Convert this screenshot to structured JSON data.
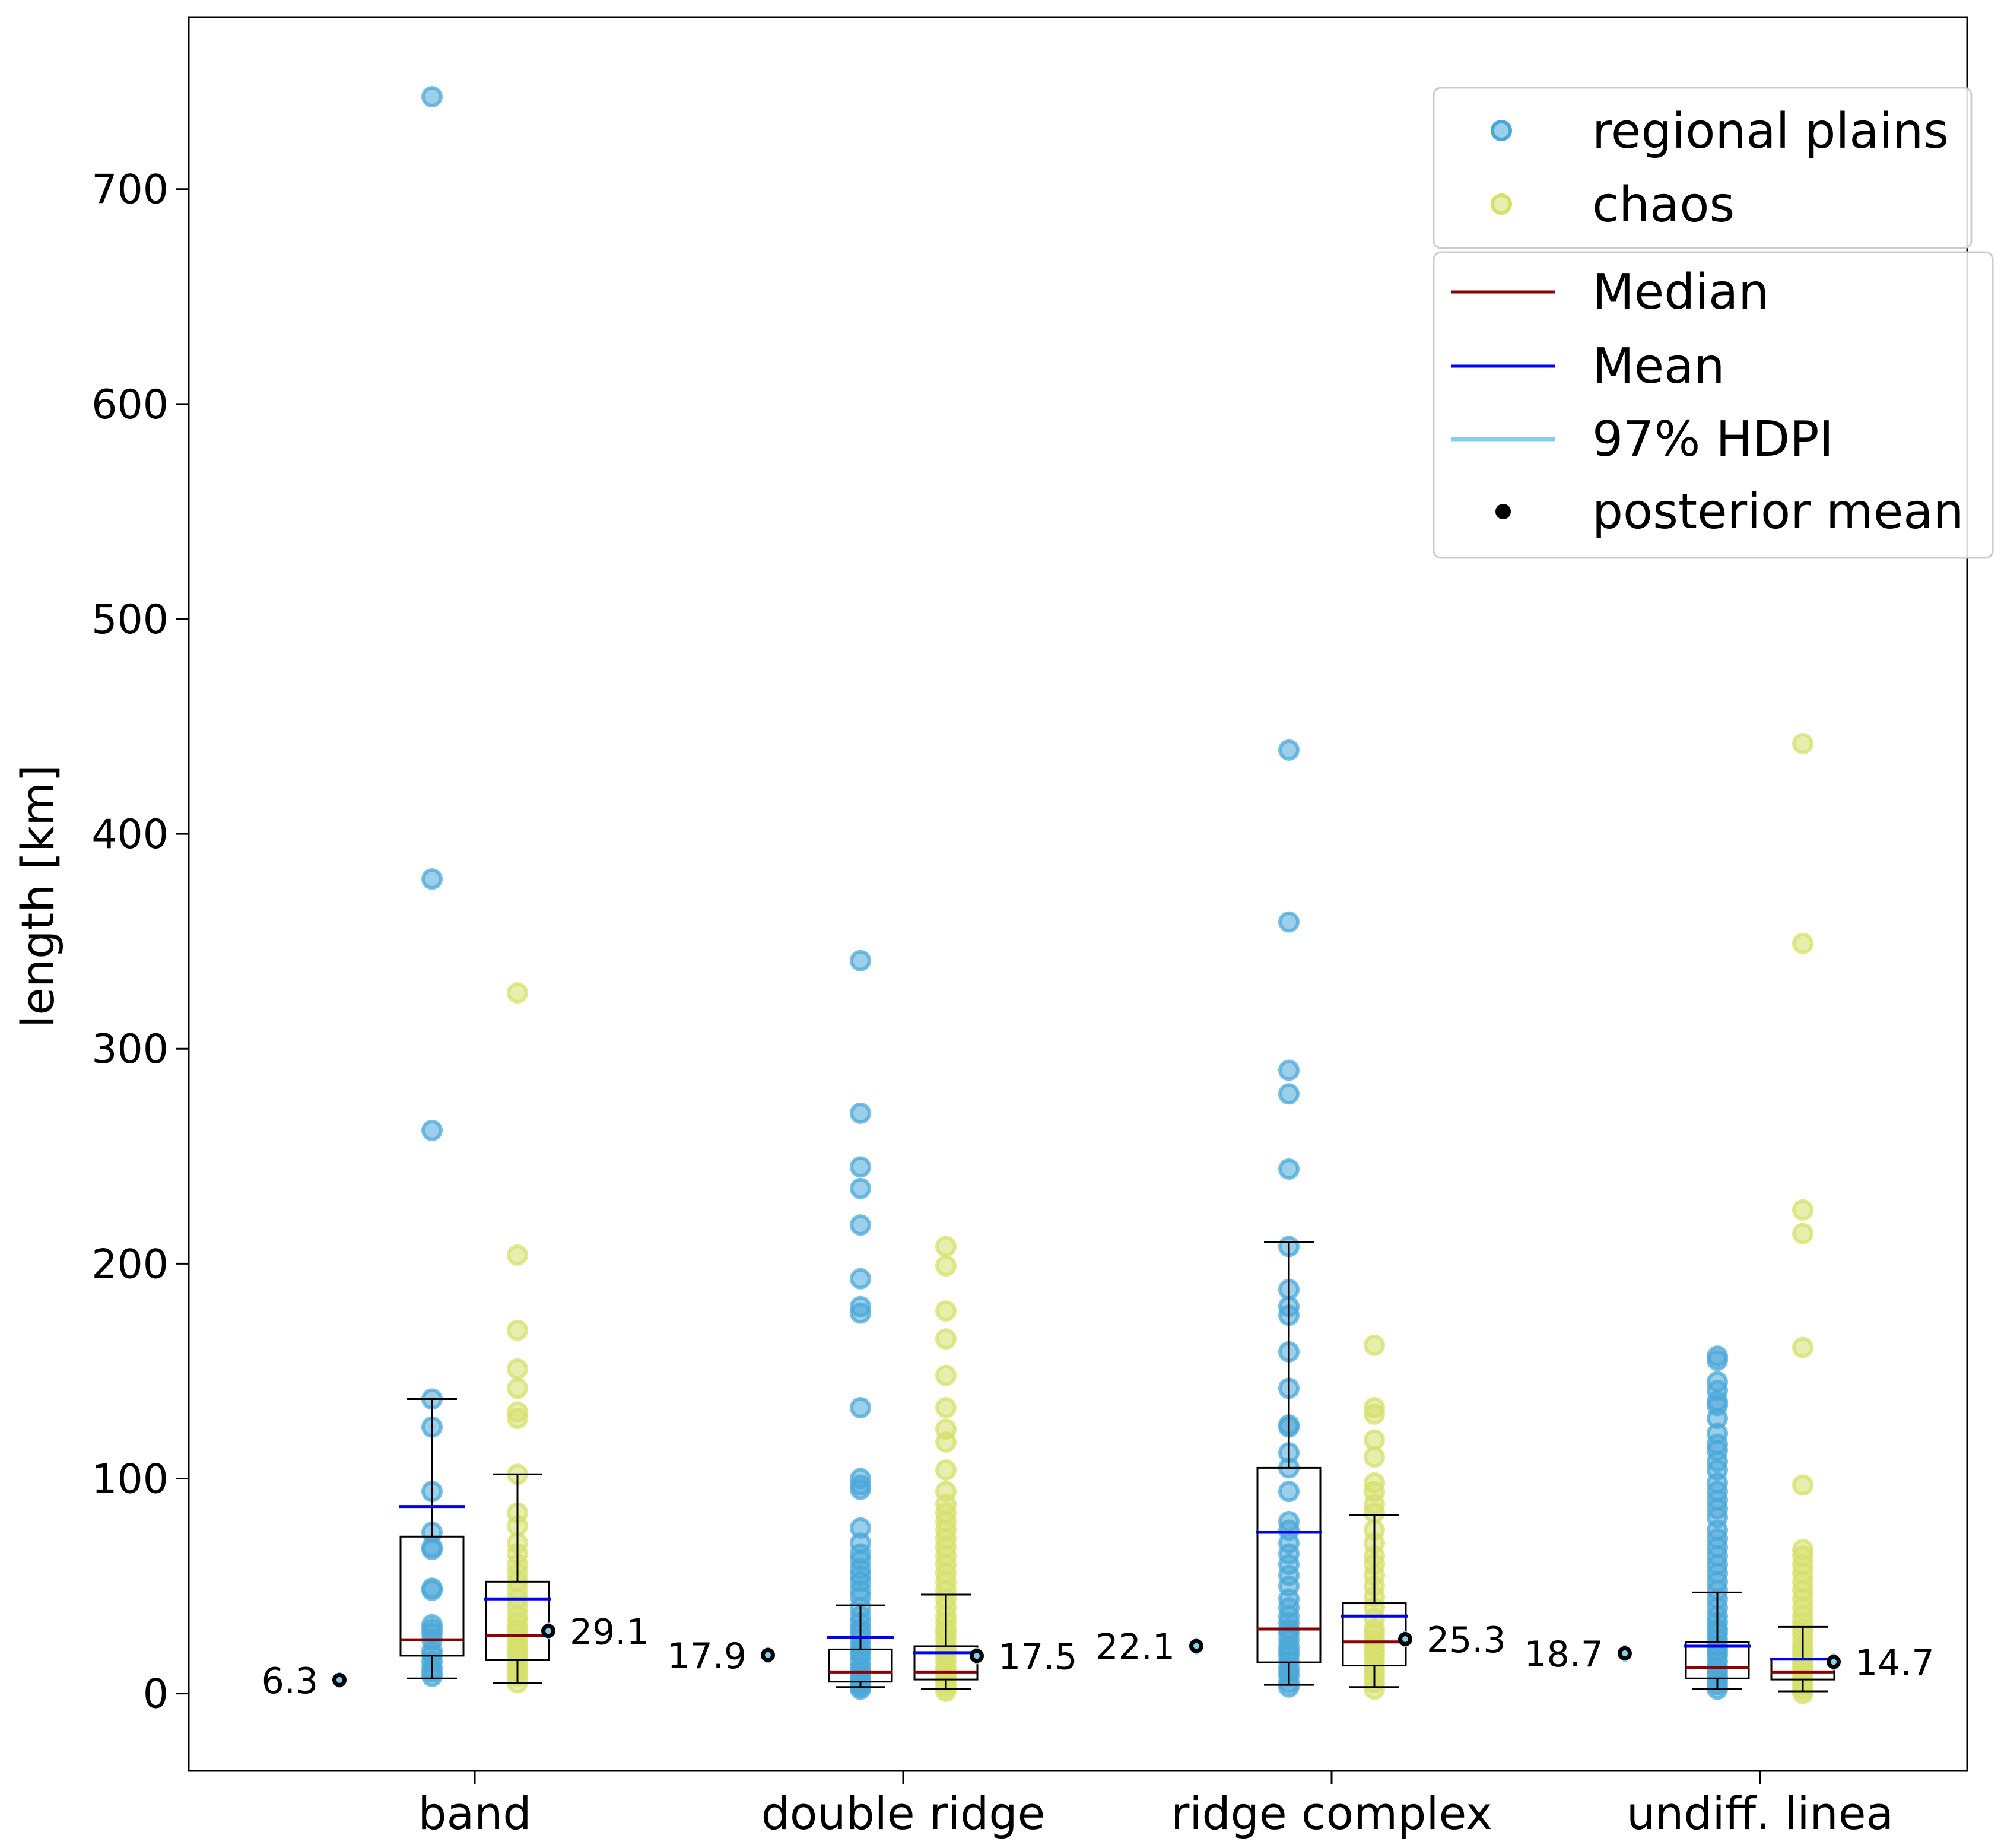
{
  "chart_data": {
    "type": "box",
    "ylabel": "length [km]",
    "ylim": [
      -36,
      780
    ],
    "yticks": [
      0,
      100,
      200,
      300,
      400,
      500,
      600,
      700
    ],
    "categories": [
      "band",
      "double ridge",
      "ridge complex",
      "undiff. linea"
    ],
    "series": [
      {
        "name": "regional plains",
        "color": "#4aa8d8",
        "stats": [
          {
            "whislo": 7,
            "q1": 17.6,
            "median": 25,
            "q3": 73,
            "whishi": 137,
            "mean": 87
          },
          {
            "whislo": 3,
            "q1": 5.5,
            "median": 10,
            "q3": 20.5,
            "whishi": 41,
            "mean": 26
          },
          {
            "whislo": 4,
            "q1": 14.5,
            "median": 30,
            "q3": 105,
            "whishi": 210,
            "mean": 75
          },
          {
            "whislo": 2,
            "q1": 7,
            "median": 12,
            "q3": 24,
            "whishi": 47,
            "mean": 22
          }
        ],
        "points": [
          [
            8,
            10,
            12,
            15,
            18,
            20,
            25,
            28,
            30,
            32,
            48,
            49,
            67,
            68,
            75,
            94,
            124,
            137,
            262,
            379,
            743
          ],
          [
            2,
            3,
            4,
            5,
            6,
            8,
            10,
            12,
            15,
            18,
            20,
            22,
            25,
            28,
            30,
            33,
            36,
            40,
            45,
            48,
            52,
            55,
            58,
            62,
            65,
            70,
            77,
            95,
            97,
            100,
            133,
            177,
            180,
            193,
            218,
            235,
            245,
            270,
            341
          ],
          [
            3,
            5,
            8,
            10,
            12,
            15,
            18,
            20,
            22,
            25,
            28,
            30,
            33,
            36,
            40,
            44,
            50,
            55,
            60,
            65,
            70,
            76,
            80,
            94,
            105,
            112,
            124,
            125,
            142,
            159,
            176,
            180,
            188,
            208,
            244,
            279,
            290,
            359,
            439
          ],
          [
            2,
            4,
            6,
            8,
            10,
            12,
            15,
            18,
            20,
            22,
            25,
            28,
            30,
            33,
            36,
            40,
            44,
            48,
            52,
            56,
            60,
            64,
            68,
            72,
            76,
            82,
            86,
            90,
            94,
            98,
            104,
            108,
            113,
            116,
            121,
            128,
            134,
            136,
            141,
            145,
            155,
            157
          ]
        ]
      },
      {
        "name": "chaos",
        "color": "#d5e06b",
        "stats": [
          {
            "whislo": 5,
            "q1": 15.5,
            "median": 27,
            "q3": 52,
            "whishi": 102,
            "mean": 44
          },
          {
            "whislo": 2,
            "q1": 6.5,
            "median": 10,
            "q3": 22,
            "whishi": 46,
            "mean": 19
          },
          {
            "whislo": 3,
            "q1": 13,
            "median": 24,
            "q3": 42,
            "whishi": 83,
            "mean": 36
          },
          {
            "whislo": 1,
            "q1": 6.5,
            "median": 10,
            "q3": 16,
            "whishi": 31,
            "mean": 16
          }
        ],
        "points": [
          [
            5,
            8,
            10,
            12,
            15,
            18,
            20,
            22,
            25,
            28,
            30,
            33,
            36,
            40,
            44,
            48,
            52,
            56,
            60,
            65,
            70,
            78,
            84,
            102,
            128,
            131,
            142,
            151,
            169,
            204,
            326
          ],
          [
            1,
            3,
            5,
            8,
            10,
            12,
            15,
            18,
            20,
            22,
            25,
            28,
            30,
            33,
            36,
            40,
            44,
            48,
            52,
            56,
            60,
            64,
            68,
            72,
            76,
            80,
            84,
            88,
            94,
            104,
            117,
            123,
            133,
            148,
            165,
            178,
            199,
            208
          ],
          [
            2,
            5,
            8,
            10,
            12,
            15,
            18,
            20,
            22,
            25,
            28,
            30,
            35,
            40,
            45,
            50,
            55,
            60,
            64,
            70,
            76,
            84,
            88,
            94,
            98,
            110,
            118,
            130,
            133,
            162
          ],
          [
            0,
            2,
            4,
            6,
            8,
            10,
            12,
            14,
            16,
            18,
            20,
            22,
            25,
            28,
            30,
            33,
            36,
            40,
            44,
            48,
            52,
            56,
            60,
            64,
            67,
            97,
            161,
            214,
            225,
            349,
            442
          ]
        ]
      }
    ],
    "posterior_means": [
      {
        "values": [
          6.3,
          29.1
        ],
        "labels": [
          "6.3",
          "29.1"
        ]
      },
      {
        "values": [
          17.9,
          17.5
        ],
        "labels": [
          "17.9",
          "17.5"
        ]
      },
      {
        "values": [
          22.1,
          25.3
        ],
        "labels": [
          "22.1",
          "25.3"
        ]
      },
      {
        "values": [
          18.7,
          14.7
        ],
        "labels": [
          "18.7",
          "14.7"
        ]
      }
    ],
    "stat_colors": {
      "median": "#8b0000",
      "mean": "#0000ee",
      "hdpi": "#87ceeb",
      "posterior_mean": "#000000"
    },
    "legend": {
      "placement": "top-right",
      "scatter_entries": [
        "regional plains",
        "chaos"
      ],
      "line_entries": [
        "Median",
        "Mean",
        "97% HDPI",
        "posterior mean"
      ]
    }
  }
}
